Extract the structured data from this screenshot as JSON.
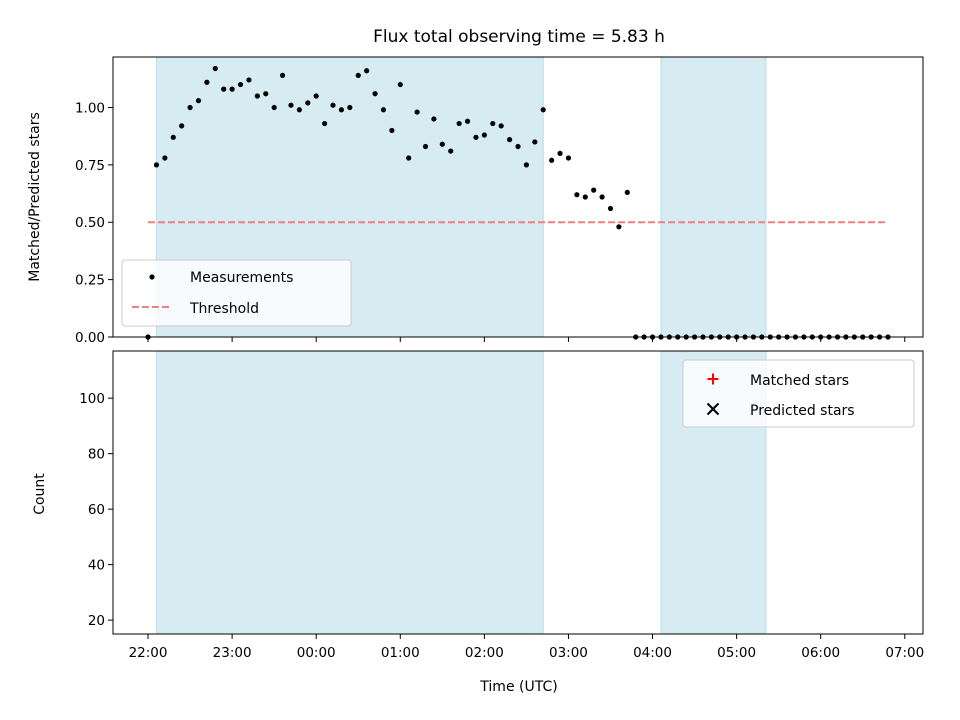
{
  "chart_data": [
    {
      "type": "scatter",
      "title": "Flux total observing time = 5.83 h",
      "xlabel": "",
      "ylabel": "Matched/Predicted stars",
      "xlim": [
        "21:35",
        "07:13"
      ],
      "ylim": [
        0,
        1.22
      ],
      "yticks": [
        "0.00",
        "0.25",
        "0.50",
        "0.75",
        "1.00"
      ],
      "grid": false,
      "legend_position": "lower-left",
      "shaded_intervals": [
        [
          "22:06",
          "02:42"
        ],
        [
          "04:06",
          "05:21"
        ]
      ],
      "threshold": {
        "name": "Threshold",
        "value": 0.5,
        "x_range": [
          "22:00",
          "06:48"
        ],
        "color": "#f08080"
      },
      "series": [
        {
          "name": "Measurements",
          "marker": "dot",
          "color": "#000000",
          "x": [
            "22:00",
            "22:06",
            "22:12",
            "22:18",
            "22:24",
            "22:30",
            "22:36",
            "22:42",
            "22:48",
            "22:54",
            "23:00",
            "23:06",
            "23:12",
            "23:18",
            "23:24",
            "23:30",
            "23:36",
            "23:42",
            "23:48",
            "23:54",
            "00:00",
            "00:06",
            "00:12",
            "00:18",
            "00:24",
            "00:30",
            "00:36",
            "00:42",
            "00:48",
            "00:54",
            "01:00",
            "01:06",
            "01:12",
            "01:18",
            "01:24",
            "01:30",
            "01:36",
            "01:42",
            "01:48",
            "01:54",
            "02:00",
            "02:06",
            "02:12",
            "02:18",
            "02:24",
            "02:30",
            "02:36",
            "02:42",
            "02:48",
            "02:54",
            "03:00",
            "03:06",
            "03:12",
            "03:18",
            "03:24",
            "03:30",
            "03:36",
            "03:42",
            "03:48",
            "03:54",
            "04:00",
            "04:06",
            "04:12",
            "04:18",
            "04:24",
            "04:30",
            "04:36",
            "04:42",
            "04:48",
            "04:54",
            "05:00",
            "05:06",
            "05:12",
            "05:18",
            "05:24",
            "05:30",
            "05:36",
            "05:42",
            "05:48",
            "05:54",
            "06:00",
            "06:06",
            "06:12",
            "06:18",
            "06:24",
            "06:30",
            "06:36",
            "06:42",
            "06:48"
          ],
          "y": [
            0.0,
            0.75,
            0.78,
            0.87,
            0.92,
            1.0,
            1.03,
            1.11,
            1.17,
            1.08,
            1.08,
            1.1,
            1.12,
            1.05,
            1.06,
            1.0,
            1.14,
            1.01,
            0.99,
            1.02,
            1.05,
            0.93,
            1.01,
            0.99,
            1.0,
            1.14,
            1.16,
            1.06,
            0.99,
            0.9,
            1.1,
            0.78,
            0.98,
            0.83,
            0.95,
            0.84,
            0.81,
            0.93,
            0.94,
            0.87,
            0.88,
            0.93,
            0.92,
            0.86,
            0.83,
            0.75,
            0.85,
            0.99,
            0.77,
            0.8,
            0.78,
            0.62,
            0.61,
            0.64,
            0.61,
            0.56,
            0.48,
            0.63,
            0.0,
            0.0,
            0.0,
            0.0,
            0.0,
            0.0,
            0.0,
            0.0,
            0.0,
            0.0,
            0.0,
            0.0,
            0.0,
            0.0,
            0.0,
            0.0,
            0.0,
            0.0,
            0.0,
            0.0,
            0.0,
            0.0,
            0.0,
            0.0,
            0.0,
            0.0,
            0.0,
            0.0,
            0.0,
            0.0,
            0.0
          ]
        }
      ]
    },
    {
      "type": "scatter",
      "title": "",
      "xlabel": "Time (UTC)",
      "ylabel": "Count",
      "xlim": [
        "21:35",
        "07:13"
      ],
      "ylim": [
        15,
        117
      ],
      "xticks": [
        "22:00",
        "23:00",
        "00:00",
        "01:00",
        "02:00",
        "03:00",
        "04:00",
        "05:00",
        "06:00",
        "07:00"
      ],
      "yticks": [
        "20",
        "40",
        "60",
        "80",
        "100"
      ],
      "grid": false,
      "legend_position": "upper-right",
      "shaded_intervals": [
        [
          "22:06",
          "02:42"
        ],
        [
          "04:06",
          "05:21"
        ]
      ],
      "series": [
        {
          "name": "Matched stars",
          "marker": "plus",
          "color": "#ff0000",
          "x": [],
          "y": []
        },
        {
          "name": "Predicted stars",
          "marker": "x",
          "color": "#000000",
          "x": [],
          "y": []
        }
      ]
    }
  ]
}
